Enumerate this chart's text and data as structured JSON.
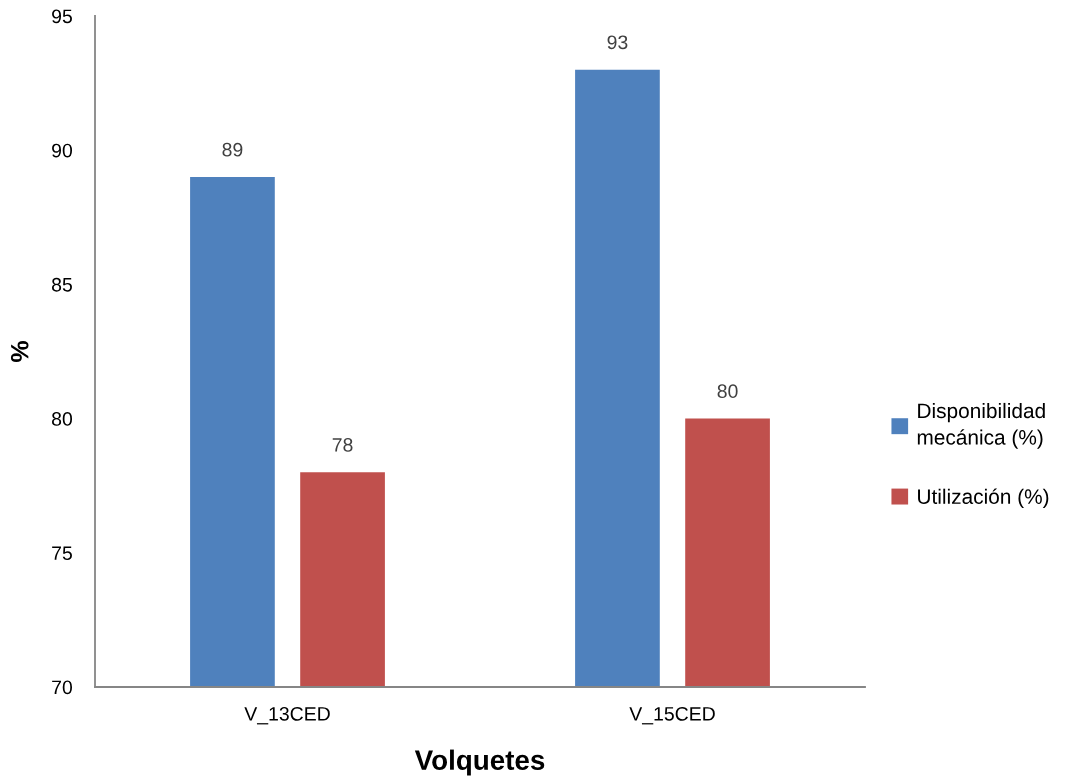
{
  "chart_data": {
    "type": "bar",
    "xlabel": "Volquetes",
    "ylabel": "%",
    "categories": [
      "V_13CED",
      "V_15CED"
    ],
    "series": [
      {
        "name": "Disponibilidad mecánica (%)",
        "color": "#4f81bd",
        "values": [
          89,
          93
        ]
      },
      {
        "name": "Utilización (%)",
        "color": "#c0504d",
        "values": [
          78,
          80
        ]
      }
    ],
    "ylim": [
      70,
      95
    ],
    "yticks": [
      70,
      75,
      80,
      85,
      90,
      95
    ],
    "grid": false,
    "legend": "right",
    "data_labels": true
  }
}
